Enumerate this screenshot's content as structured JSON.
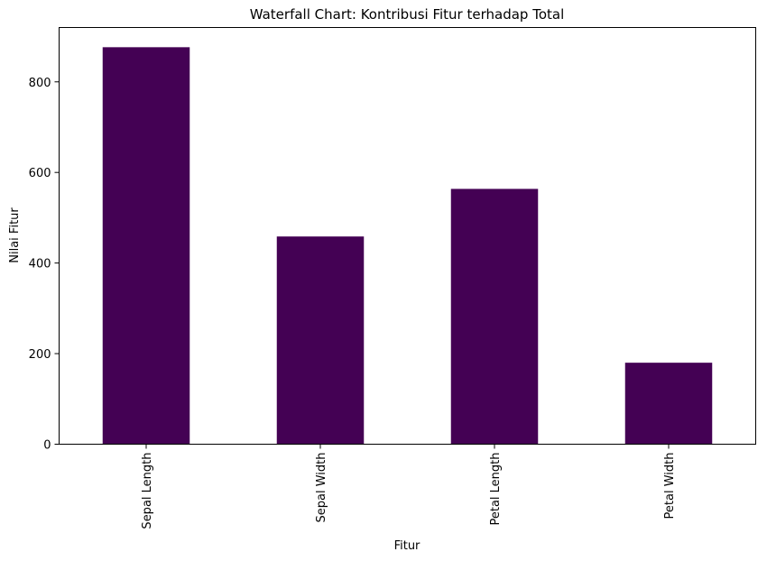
{
  "chart_data": {
    "type": "bar",
    "title": "Waterfall Chart: Kontribusi Fitur terhadap Total",
    "xlabel": "Fitur",
    "ylabel": "Nilai Fitur",
    "categories": [
      "Sepal Length",
      "Sepal Width",
      "Petal Length",
      "Petal Width"
    ],
    "values": [
      876.5,
      458.6,
      563.7,
      179.9
    ],
    "ylim": [
      0,
      920
    ],
    "yticks": [
      0,
      200,
      400,
      600,
      800
    ],
    "bar_color": "#440154",
    "grid": false,
    "legend": "none"
  }
}
